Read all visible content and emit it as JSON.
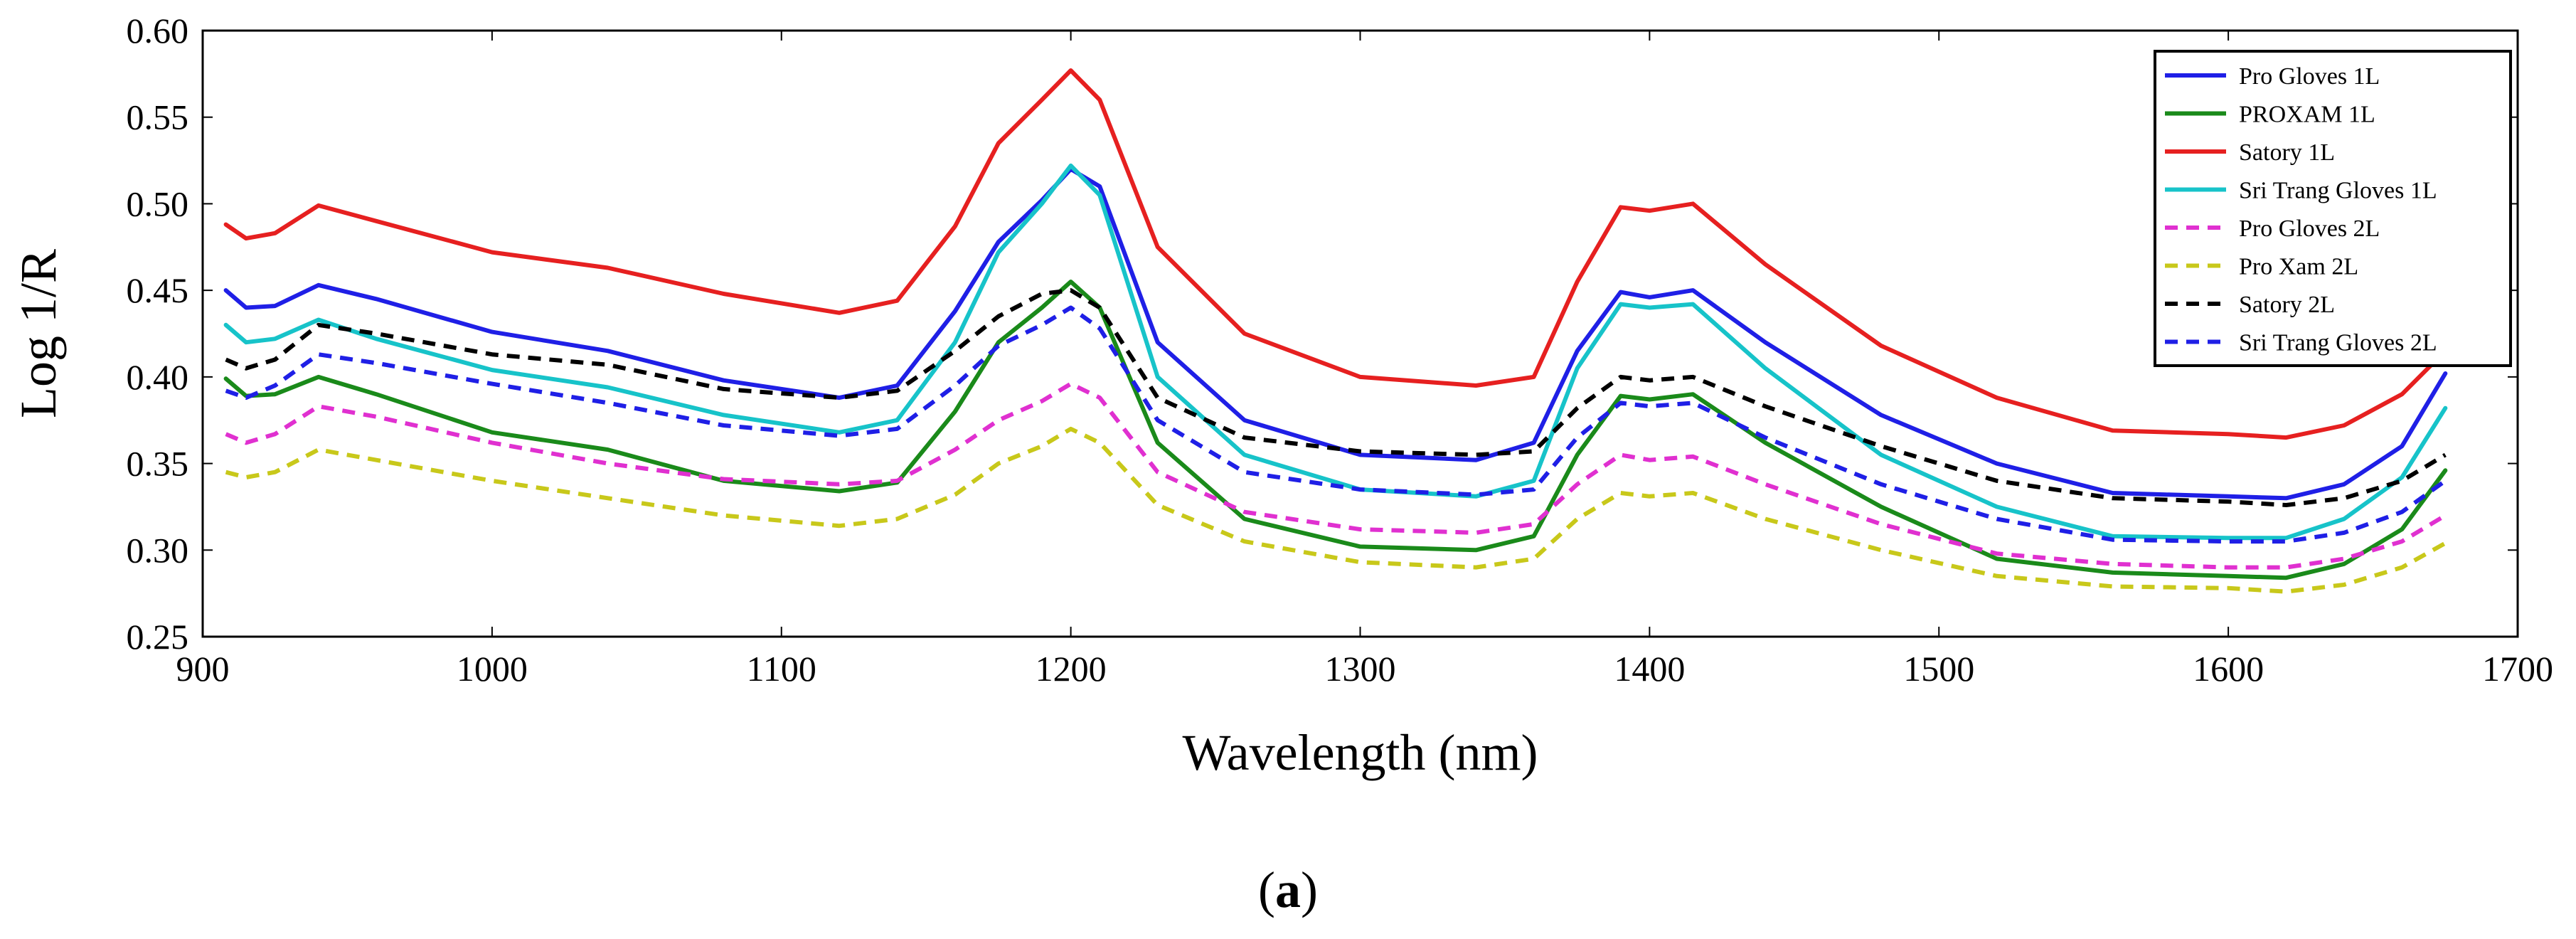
{
  "chart_data": {
    "type": "line",
    "title": "",
    "xlabel": "Wavelength (nm)",
    "ylabel": "Log 1/R",
    "xlim": [
      900,
      1700
    ],
    "ylim": [
      0.25,
      0.6
    ],
    "xticks": [
      "900",
      "1000",
      "1100",
      "1200",
      "1300",
      "1400",
      "1500",
      "1600",
      "1700"
    ],
    "yticks": [
      "0.25",
      "0.30",
      "0.35",
      "0.40",
      "0.45",
      "0.50",
      "0.55",
      "0.60"
    ],
    "legend_position": "top-right",
    "x": [
      908,
      915,
      925,
      940,
      960,
      1000,
      1040,
      1080,
      1120,
      1140,
      1160,
      1175,
      1190,
      1200,
      1210,
      1230,
      1260,
      1300,
      1340,
      1360,
      1375,
      1390,
      1400,
      1415,
      1440,
      1480,
      1520,
      1560,
      1600,
      1620,
      1640,
      1660,
      1675
    ],
    "series": [
      {
        "name": "Pro Gloves 1L",
        "color": "#1f1fe6",
        "style": "solid",
        "values": [
          0.45,
          0.44,
          0.441,
          0.453,
          0.445,
          0.426,
          0.415,
          0.398,
          0.388,
          0.395,
          0.438,
          0.478,
          0.502,
          0.52,
          0.51,
          0.42,
          0.375,
          0.355,
          0.352,
          0.362,
          0.415,
          0.449,
          0.446,
          0.45,
          0.42,
          0.378,
          0.35,
          0.333,
          0.331,
          0.33,
          0.338,
          0.36,
          0.402
        ]
      },
      {
        "name": "PROXAM 1L",
        "color": "#1a8a1a",
        "style": "solid",
        "values": [
          0.399,
          0.389,
          0.39,
          0.4,
          0.39,
          0.368,
          0.358,
          0.34,
          0.334,
          0.339,
          0.38,
          0.42,
          0.44,
          0.455,
          0.44,
          0.362,
          0.318,
          0.302,
          0.3,
          0.308,
          0.355,
          0.389,
          0.387,
          0.39,
          0.362,
          0.325,
          0.295,
          0.287,
          0.285,
          0.284,
          0.292,
          0.312,
          0.346
        ]
      },
      {
        "name": "Satory 1L",
        "color": "#e62020",
        "style": "solid",
        "values": [
          0.488,
          0.48,
          0.483,
          0.499,
          0.49,
          0.472,
          0.463,
          0.448,
          0.437,
          0.444,
          0.487,
          0.535,
          0.56,
          0.577,
          0.56,
          0.475,
          0.425,
          0.4,
          0.395,
          0.4,
          0.455,
          0.498,
          0.496,
          0.5,
          0.465,
          0.418,
          0.388,
          0.369,
          0.367,
          0.365,
          0.372,
          0.39,
          0.415
        ]
      },
      {
        "name": "Sri Trang Gloves 1L",
        "color": "#17c3c9",
        "style": "solid",
        "values": [
          0.43,
          0.42,
          0.422,
          0.433,
          0.422,
          0.404,
          0.394,
          0.378,
          0.368,
          0.375,
          0.42,
          0.472,
          0.5,
          0.522,
          0.505,
          0.4,
          0.355,
          0.335,
          0.331,
          0.34,
          0.405,
          0.442,
          0.44,
          0.442,
          0.405,
          0.355,
          0.325,
          0.308,
          0.307,
          0.307,
          0.318,
          0.342,
          0.382
        ]
      },
      {
        "name": "Pro Gloves 2L",
        "color": "#e030d0",
        "style": "dashed",
        "values": [
          0.367,
          0.362,
          0.367,
          0.383,
          0.377,
          0.362,
          0.35,
          0.341,
          0.338,
          0.34,
          0.358,
          0.375,
          0.386,
          0.396,
          0.388,
          0.345,
          0.322,
          0.312,
          0.31,
          0.315,
          0.338,
          0.355,
          0.352,
          0.354,
          0.338,
          0.315,
          0.298,
          0.292,
          0.29,
          0.29,
          0.295,
          0.305,
          0.32
        ]
      },
      {
        "name": "Pro Xam 2L",
        "color": "#c8c81a",
        "style": "dashed",
        "values": [
          0.345,
          0.342,
          0.345,
          0.358,
          0.352,
          0.34,
          0.33,
          0.32,
          0.314,
          0.318,
          0.332,
          0.35,
          0.36,
          0.37,
          0.362,
          0.326,
          0.305,
          0.293,
          0.29,
          0.295,
          0.318,
          0.333,
          0.331,
          0.333,
          0.318,
          0.3,
          0.285,
          0.279,
          0.278,
          0.276,
          0.28,
          0.29,
          0.304
        ]
      },
      {
        "name": "Satory 2L",
        "color": "#000000",
        "style": "dashed",
        "values": [
          0.41,
          0.405,
          0.41,
          0.43,
          0.425,
          0.413,
          0.407,
          0.393,
          0.388,
          0.392,
          0.415,
          0.435,
          0.448,
          0.45,
          0.44,
          0.388,
          0.365,
          0.357,
          0.355,
          0.357,
          0.382,
          0.4,
          0.398,
          0.4,
          0.383,
          0.36,
          0.34,
          0.33,
          0.328,
          0.326,
          0.33,
          0.34,
          0.355
        ]
      },
      {
        "name": "Sri Trang Gloves 2L",
        "color": "#1f1fe6",
        "style": "dashed",
        "values": [
          0.392,
          0.388,
          0.395,
          0.413,
          0.408,
          0.396,
          0.385,
          0.372,
          0.366,
          0.37,
          0.395,
          0.418,
          0.43,
          0.44,
          0.428,
          0.375,
          0.345,
          0.335,
          0.332,
          0.335,
          0.365,
          0.385,
          0.383,
          0.385,
          0.365,
          0.338,
          0.318,
          0.306,
          0.305,
          0.305,
          0.31,
          0.322,
          0.34
        ]
      }
    ]
  },
  "caption": {
    "open": "(",
    "label": "a",
    "close": ")"
  }
}
